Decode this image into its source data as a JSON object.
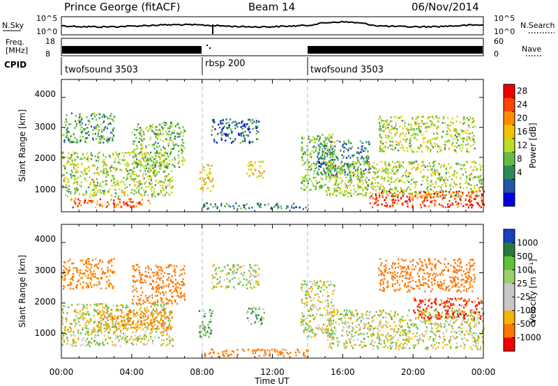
{
  "header": {
    "title": "Prince George (fitACF)",
    "beam": "Beam 14",
    "date": "06/Nov/2014"
  },
  "summary": {
    "nsky_label": "N.Sky",
    "nsearch_label": "N.Search",
    "nsky_ticks": [
      "10^5",
      "10^0"
    ],
    "nsearch_ticks": [
      "10^5",
      "10^0"
    ],
    "freq_label_1": "Freq.",
    "freq_label_2": "[MHz]",
    "freq_ticks": [
      "18",
      "8"
    ],
    "nave_label": "Nave",
    "nave_ticks": [
      "60",
      "0"
    ],
    "cpid_label": "CPID",
    "cpid_segments": [
      {
        "label": "twofsound 3503",
        "start_hour": 0
      },
      {
        "label": "rbsp 200",
        "start_hour": 8
      },
      {
        "label": "twofsound 3503",
        "start_hour": 14
      }
    ]
  },
  "panels": {
    "power": {
      "ylabel": "Slant Range [km]",
      "yticks": [
        "4000",
        "3000",
        "2000",
        "1000"
      ],
      "colorbar_label": "Power [dB]",
      "colorbar_ticks": [
        "28",
        "24",
        "20",
        "16",
        "12",
        "8",
        "4"
      ],
      "colors": [
        "#0000dd",
        "#2255aa",
        "#2e8b57",
        "#66bb44",
        "#bbdd22",
        "#f2c200",
        "#ff8c00",
        "#ff4400",
        "#ee0000"
      ]
    },
    "velocity": {
      "ylabel": "Slant Range [km]",
      "yticks": [
        "4000",
        "3000",
        "2000",
        "1000"
      ],
      "colorbar_label": "Velocity [m s^-1]",
      "colorbar_ticks": [
        "1000",
        "500",
        "100",
        "25",
        "-25",
        "-100",
        "-500",
        "-1000"
      ],
      "colors": [
        "#1a3fbf",
        "#2b7a3b",
        "#5dc238",
        "#9ad06a",
        "#c8c8c8",
        "#c8c8c8",
        "#f2b400",
        "#ff7700",
        "#ee0000"
      ]
    }
  },
  "xaxis": {
    "label": "Time UT",
    "ticks": [
      "00:00",
      "04:00",
      "08:00",
      "12:00",
      "16:00",
      "20:00",
      "00:00"
    ]
  },
  "chart_data": [
    {
      "type": "heatmap",
      "title": "Prince George (fitACF)",
      "xlabel": "Time UT",
      "ylabel": "Slant Range [km]",
      "colorbar": "Power [dB]",
      "xlim": [
        0,
        24
      ],
      "ylim": [
        180,
        4600
      ],
      "clim": [
        0,
        30
      ],
      "echo_regions": [
        {
          "t0": 0,
          "t1": 6.3,
          "r0": 700,
          "r1": 2200,
          "mean": 14
        },
        {
          "t0": 0.5,
          "t1": 5,
          "r0": 350,
          "r1": 650,
          "mean": 24
        },
        {
          "t0": 0,
          "t1": 3,
          "r0": 2500,
          "r1": 3500,
          "mean": 10
        },
        {
          "t0": 4,
          "t1": 7,
          "r0": 1700,
          "r1": 3200,
          "mean": 12
        },
        {
          "t0": 7.8,
          "t1": 8.6,
          "r0": 900,
          "r1": 1800,
          "mean": 18
        },
        {
          "t0": 8.5,
          "t1": 11.2,
          "r0": 2500,
          "r1": 3300,
          "mean": 6
        },
        {
          "t0": 10.5,
          "t1": 11.5,
          "r0": 1300,
          "r1": 1900,
          "mean": 18
        },
        {
          "t0": 8,
          "t1": 14,
          "r0": 300,
          "r1": 500,
          "mean": 8
        },
        {
          "t0": 13.6,
          "t1": 15.5,
          "r0": 900,
          "r1": 2800,
          "mean": 12
        },
        {
          "t0": 14.5,
          "t1": 17.5,
          "r0": 1400,
          "r1": 2600,
          "mean": 8
        },
        {
          "t0": 15,
          "t1": 24,
          "r0": 700,
          "r1": 1900,
          "mean": 14
        },
        {
          "t0": 17.5,
          "t1": 24,
          "r0": 350,
          "r1": 900,
          "mean": 26
        },
        {
          "t0": 18,
          "t1": 23.5,
          "r0": 2200,
          "r1": 3400,
          "mean": 14
        }
      ]
    },
    {
      "type": "heatmap",
      "title": "",
      "xlabel": "Time UT",
      "ylabel": "Slant Range [km]",
      "colorbar": "Velocity [m s^-1]",
      "xlim": [
        0,
        24
      ],
      "ylim": [
        180,
        4600
      ],
      "clim": [
        -1000,
        1000
      ],
      "echo_regions": [
        {
          "t0": 0,
          "t1": 6.3,
          "r0": 600,
          "r1": 2000,
          "mean": 0
        },
        {
          "t0": 2,
          "t1": 6.3,
          "r0": 1100,
          "r1": 1800,
          "mean": -120
        },
        {
          "t0": 0,
          "t1": 3,
          "r0": 2500,
          "r1": 3500,
          "mean": -150
        },
        {
          "t0": 4,
          "t1": 7,
          "r0": 2000,
          "r1": 3300,
          "mean": -200
        },
        {
          "t0": 7.8,
          "t1": 8.6,
          "r0": 900,
          "r1": 1800,
          "mean": 80
        },
        {
          "t0": 8.5,
          "t1": 11.2,
          "r0": 2500,
          "r1": 3300,
          "mean": 0
        },
        {
          "t0": 10.5,
          "t1": 11.5,
          "r0": 1300,
          "r1": 1900,
          "mean": 60
        },
        {
          "t0": 8,
          "t1": 14,
          "r0": 250,
          "r1": 500,
          "mean": -200
        },
        {
          "t0": 13.6,
          "t1": 15.5,
          "r0": 900,
          "r1": 2800,
          "mean": 0
        },
        {
          "t0": 15,
          "t1": 24,
          "r0": 500,
          "r1": 1800,
          "mean": 0
        },
        {
          "t0": 20,
          "t1": 24,
          "r0": 1500,
          "r1": 2200,
          "mean": -500
        },
        {
          "t0": 18,
          "t1": 23.5,
          "r0": 2400,
          "r1": 3500,
          "mean": -350
        }
      ]
    }
  ]
}
